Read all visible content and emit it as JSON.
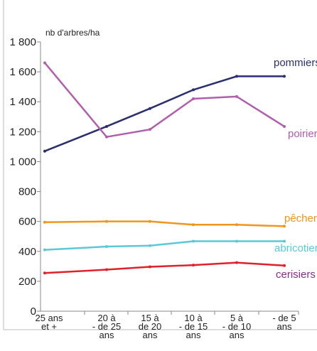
{
  "chart_data": {
    "type": "line",
    "y_label": "nb d'arbres/ha",
    "categories": [
      "25 ans\net +",
      "20 à\n- de 25\nans",
      "15 à\nde 20\nans",
      "10 à\n- de 15\nans",
      "5 à\n- de 10\nans",
      "- de 5\nans"
    ],
    "ylim": [
      0,
      1800
    ],
    "yticks": [
      0,
      200,
      400,
      600,
      800,
      {
        "value": 1000,
        "label": "1 000"
      },
      {
        "value": 1200,
        "label": "1 200"
      },
      {
        "value": 1400,
        "label": "1 400"
      },
      {
        "value": 1600,
        "label": "1 600"
      },
      {
        "value": 1800,
        "label": "1 800"
      }
    ],
    "series": [
      {
        "name": "pommiers",
        "color": "#2b2f6e",
        "label_color": "#2b2f6e",
        "values": [
          1070,
          1235,
          1355,
          1480,
          1570,
          1570
        ]
      },
      {
        "name": "poiriers",
        "color": "#b05fad",
        "label_color": "#b05fad",
        "values": [
          1660,
          1165,
          1215,
          1420,
          1435,
          1235
        ]
      },
      {
        "name": "pêchers",
        "color": "#f0951e",
        "label_color": "#f0951e",
        "values": [
          595,
          600,
          600,
          578,
          578,
          568
        ]
      },
      {
        "name": "abricotiers",
        "color": "#5bc8d8",
        "label_color": "#5bc8d8",
        "values": [
          410,
          432,
          438,
          468,
          468,
          468
        ]
      },
      {
        "name": "cerisiers",
        "color": "#e0202a",
        "label_color": "#8b2c8c",
        "values": [
          255,
          278,
          297,
          308,
          325,
          305
        ]
      }
    ]
  }
}
